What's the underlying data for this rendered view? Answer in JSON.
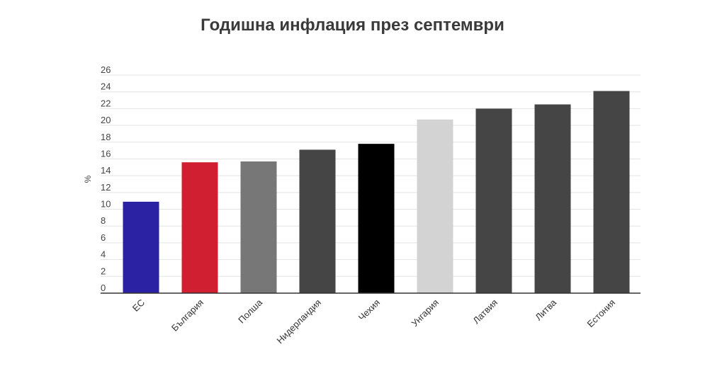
{
  "chart_data": {
    "type": "bar",
    "title": "Годишна инфлация през септември",
    "ylabel": "%",
    "xlabel": "",
    "ylim": [
      0,
      26
    ],
    "yticks": [
      0,
      2,
      4,
      6,
      8,
      10,
      12,
      14,
      16,
      18,
      20,
      22,
      24,
      26
    ],
    "grid": true,
    "categories": [
      "ЕС",
      "България",
      "Полша",
      "Нидерландия",
      "Чехия",
      "Унгария",
      "Латвия",
      "Литва",
      "Естония"
    ],
    "values": [
      10.9,
      15.6,
      15.7,
      17.1,
      17.8,
      20.7,
      22.0,
      22.5,
      24.1
    ],
    "colors": [
      "#2b22a3",
      "#d01f31",
      "#777777",
      "#454545",
      "#000000",
      "#d3d3d3",
      "#454545",
      "#454545",
      "#454545"
    ]
  }
}
